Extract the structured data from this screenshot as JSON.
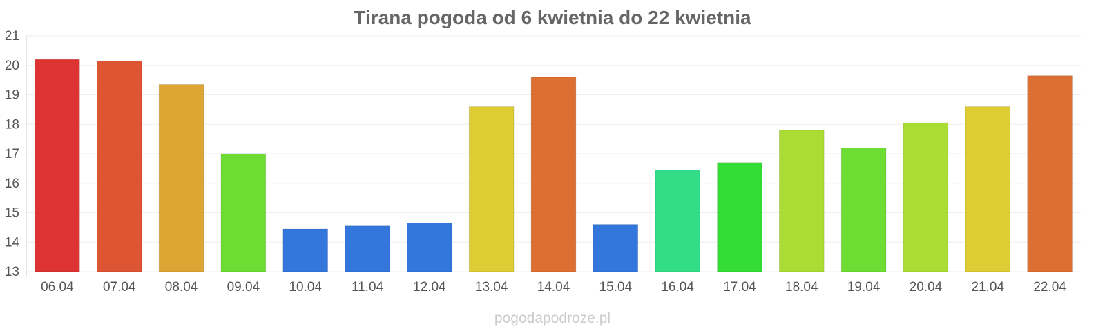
{
  "chart_data": {
    "type": "bar",
    "title": "Tirana pogoda od 6 kwietnia do 22 kwietnia",
    "categories": [
      "06.04",
      "07.04",
      "08.04",
      "09.04",
      "10.04",
      "11.04",
      "12.04",
      "13.04",
      "14.04",
      "15.04",
      "16.04",
      "17.04",
      "18.04",
      "19.04",
      "20.04",
      "21.04",
      "22.04"
    ],
    "values": [
      20.2,
      20.15,
      19.35,
      17.0,
      14.45,
      14.55,
      14.65,
      18.6,
      19.6,
      14.6,
      16.45,
      16.7,
      17.8,
      17.2,
      18.05,
      18.6,
      19.65
    ],
    "colors": [
      "#dd3333",
      "#dd5533",
      "#dda533",
      "#6ddd33",
      "#3377dd",
      "#3377dd",
      "#3377dd",
      "#ddcc33",
      "#dd6f33",
      "#3377dd",
      "#33dd88",
      "#33dd33",
      "#aadd33",
      "#6ddd33",
      "#aadd33",
      "#ddcc33",
      "#dd6f33"
    ],
    "xlabel": "",
    "ylabel": "",
    "ylim": [
      13,
      21
    ],
    "yticks": [
      13,
      14,
      15,
      16,
      17,
      18,
      19,
      20,
      21
    ],
    "grid": true
  },
  "watermark": "pogodapodroze.pl"
}
